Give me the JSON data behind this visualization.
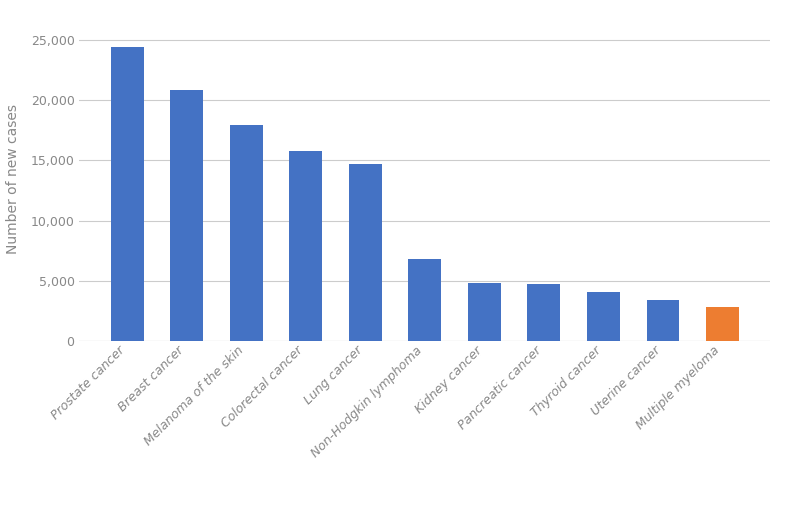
{
  "categories": [
    "Prostate cancer",
    "Breast cancer",
    "Melanoma of the skin",
    "Colorectal cancer",
    "Lung cancer",
    "Non-Hodgkin lymphoma",
    "Kidney cancer",
    "Pancreatic cancer",
    "Thyroid cancer",
    "Uterine cancer",
    "Multiple myeloma"
  ],
  "values": [
    24400,
    20800,
    17900,
    15800,
    14700,
    6850,
    4800,
    4750,
    4100,
    3450,
    2850
  ],
  "bar_colors": [
    "#4472C4",
    "#4472C4",
    "#4472C4",
    "#4472C4",
    "#4472C4",
    "#4472C4",
    "#4472C4",
    "#4472C4",
    "#4472C4",
    "#4472C4",
    "#ED7D31"
  ],
  "ylabel": "Number of new cases",
  "ylim": [
    0,
    27000
  ],
  "yticks": [
    0,
    5000,
    10000,
    15000,
    20000,
    25000
  ],
  "background_color": "#ffffff",
  "grid_color": "#cccccc",
  "bar_width": 0.55,
  "ylabel_fontsize": 10,
  "tick_fontsize": 9,
  "xtick_fontsize": 9
}
